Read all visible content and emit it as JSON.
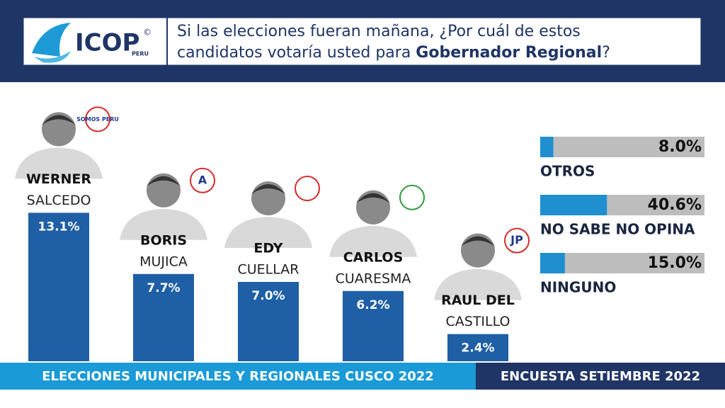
{
  "header": {
    "logo": "ICOP",
    "logo_sub": "PERU",
    "logo_mark": "©",
    "question_line1": "Si las elecciones fueran mañana, ¿Por cuál de estos",
    "question_line2": "candidatos votaría usted para ",
    "question_bold": "Gobernador Regional",
    "question_end": "?"
  },
  "chart_data": [
    {
      "type": "bar",
      "categories": [
        "WERNER",
        "BORIS",
        "EDY",
        "CARLOS",
        "RAUL DEL"
      ],
      "surnames": [
        "SALCEDO",
        "MUJICA",
        "CUELLAR",
        "CUARESMA",
        "CASTILLO"
      ],
      "party_logos": [
        "SOMOS PERU",
        "A",
        null,
        null,
        "JP"
      ],
      "values": [
        13.1,
        7.7,
        7.0,
        6.2,
        2.4
      ],
      "value_labels": [
        "13.1%",
        "7.7%",
        "7.0%",
        "6.2%",
        "2.4%"
      ],
      "color": "#1f5fa5"
    },
    {
      "type": "hbar",
      "categories": [
        "OTROS",
        "NO SABE NO OPINA",
        "NINGUNO"
      ],
      "values": [
        8.0,
        40.6,
        15.0
      ],
      "value_labels": [
        "8.0%",
        "40.6%",
        "15.0%"
      ],
      "xlim": [
        0,
        100
      ],
      "color": "#1f8fd0",
      "track_color": "#bdbdbd"
    }
  ],
  "footer": {
    "left": "ELECCIONES MUNICIPALES Y REGIONALES CUSCO 2022",
    "right": "ENCUESTA SETIEMBRE 2022"
  }
}
